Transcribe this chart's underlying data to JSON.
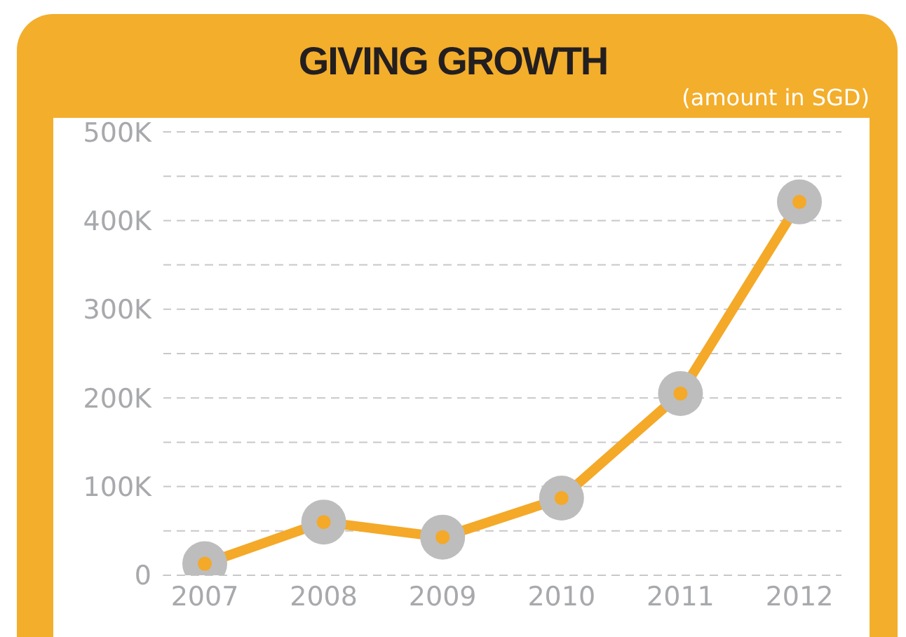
{
  "chart_data": {
    "type": "line",
    "title": "GIVING GROWTH",
    "subtitle": "(amount in SGD)",
    "categories": [
      "2007",
      "2008",
      "2009",
      "2010",
      "2011",
      "2012"
    ],
    "series": [
      {
        "color": "#f4a928",
        "values": [
          13000,
          60000,
          43000,
          87000,
          205000,
          421000
        ]
      }
    ],
    "ylim": [
      0,
      500000
    ],
    "yticks": [
      0,
      {
        "value": 50000,
        "label": null
      },
      {
        "value": 100000,
        "label": "100K"
      },
      {
        "value": 150000,
        "label": null
      },
      {
        "value": 200000,
        "label": "200K"
      },
      {
        "value": 250000,
        "label": null
      },
      {
        "value": 300000,
        "label": "300K"
      },
      {
        "value": 350000,
        "label": null
      },
      {
        "value": 400000,
        "label": "400K"
      },
      {
        "value": 450000,
        "label": null
      },
      {
        "value": 500000,
        "label": "500K"
      }
    ],
    "grid": "y",
    "marker": "circle",
    "line_style": "solid",
    "legend": false
  }
}
